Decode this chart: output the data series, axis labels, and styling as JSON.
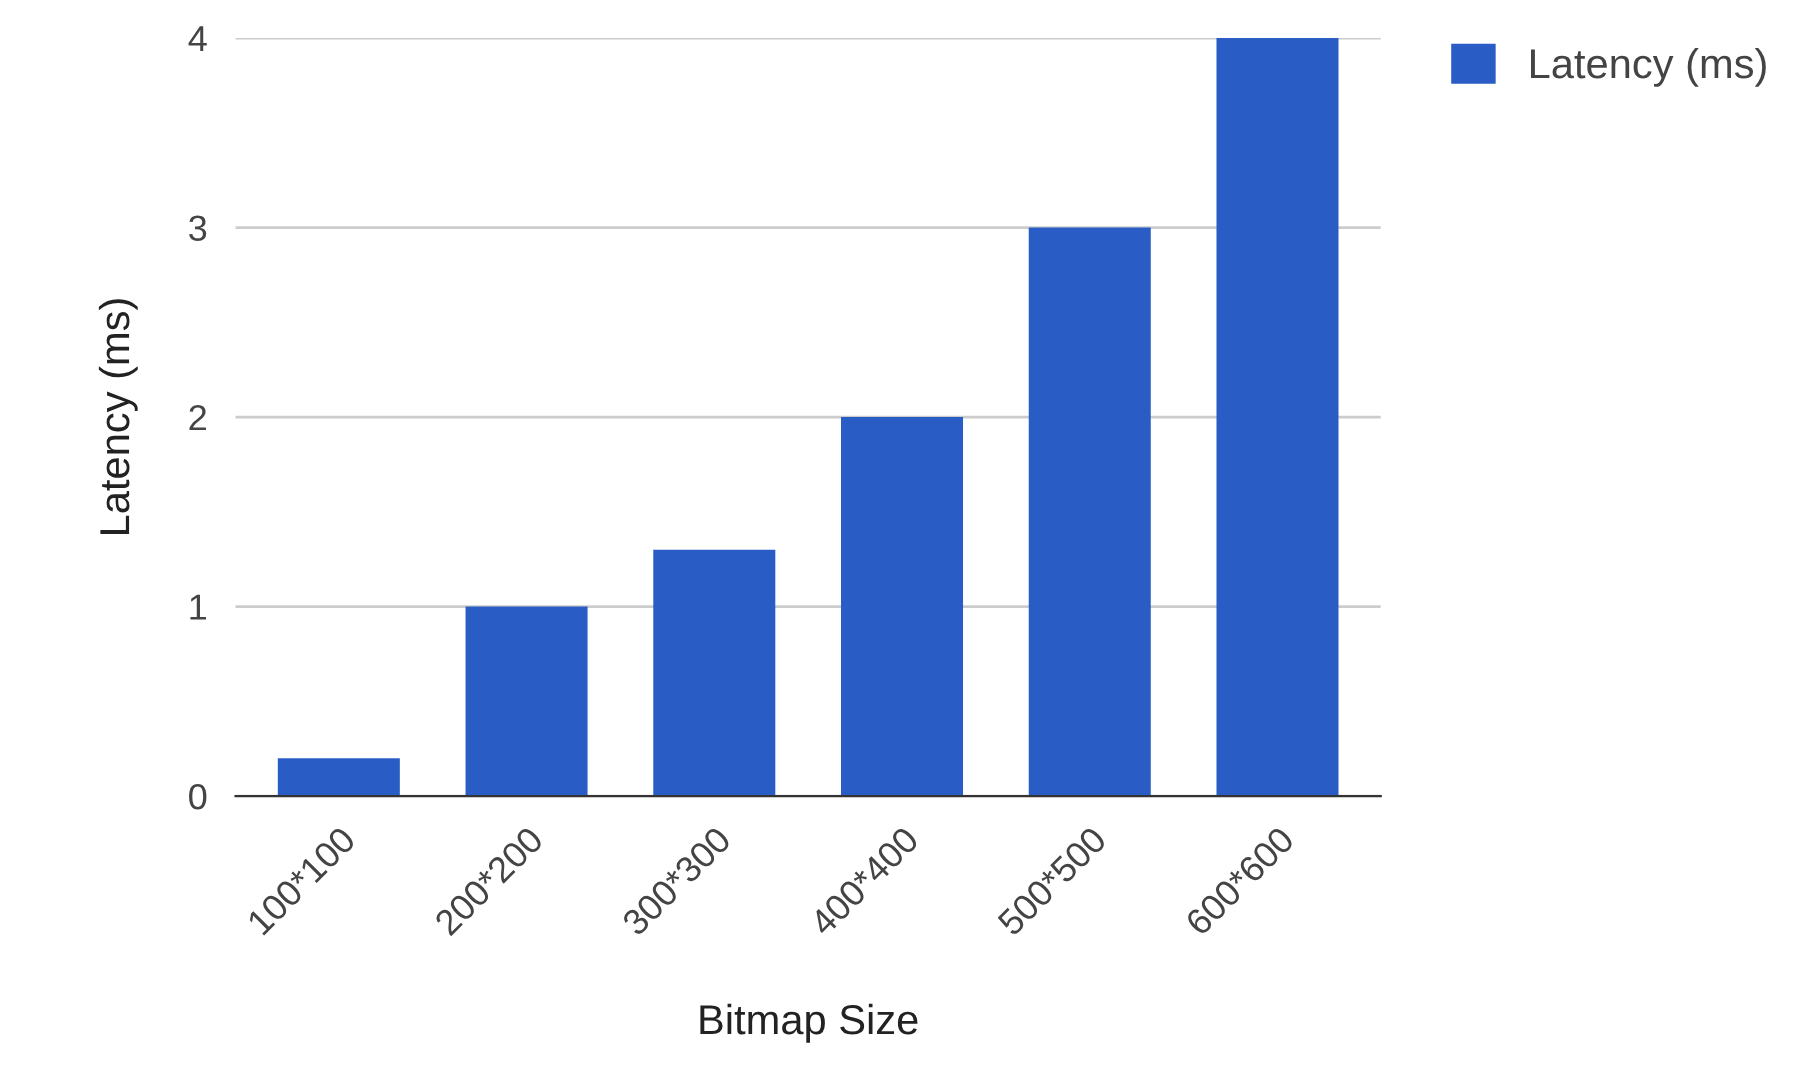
{
  "chart_data": {
    "type": "bar",
    "xlabel": "Bitmap Size",
    "ylabel": "Latency (ms)",
    "categories": [
      "100*100",
      "200*200",
      "300*300",
      "400*400",
      "500*500",
      "600*600"
    ],
    "series": [
      {
        "name": "Latency (ms)",
        "color": "#2a5cc6",
        "values": [
          0.2,
          1,
          1.3,
          2,
          3,
          4
        ]
      }
    ],
    "ylim": [
      0,
      4
    ],
    "yticks": [
      0,
      1,
      2,
      3,
      4
    ],
    "grid": "y",
    "legend": "top right"
  }
}
